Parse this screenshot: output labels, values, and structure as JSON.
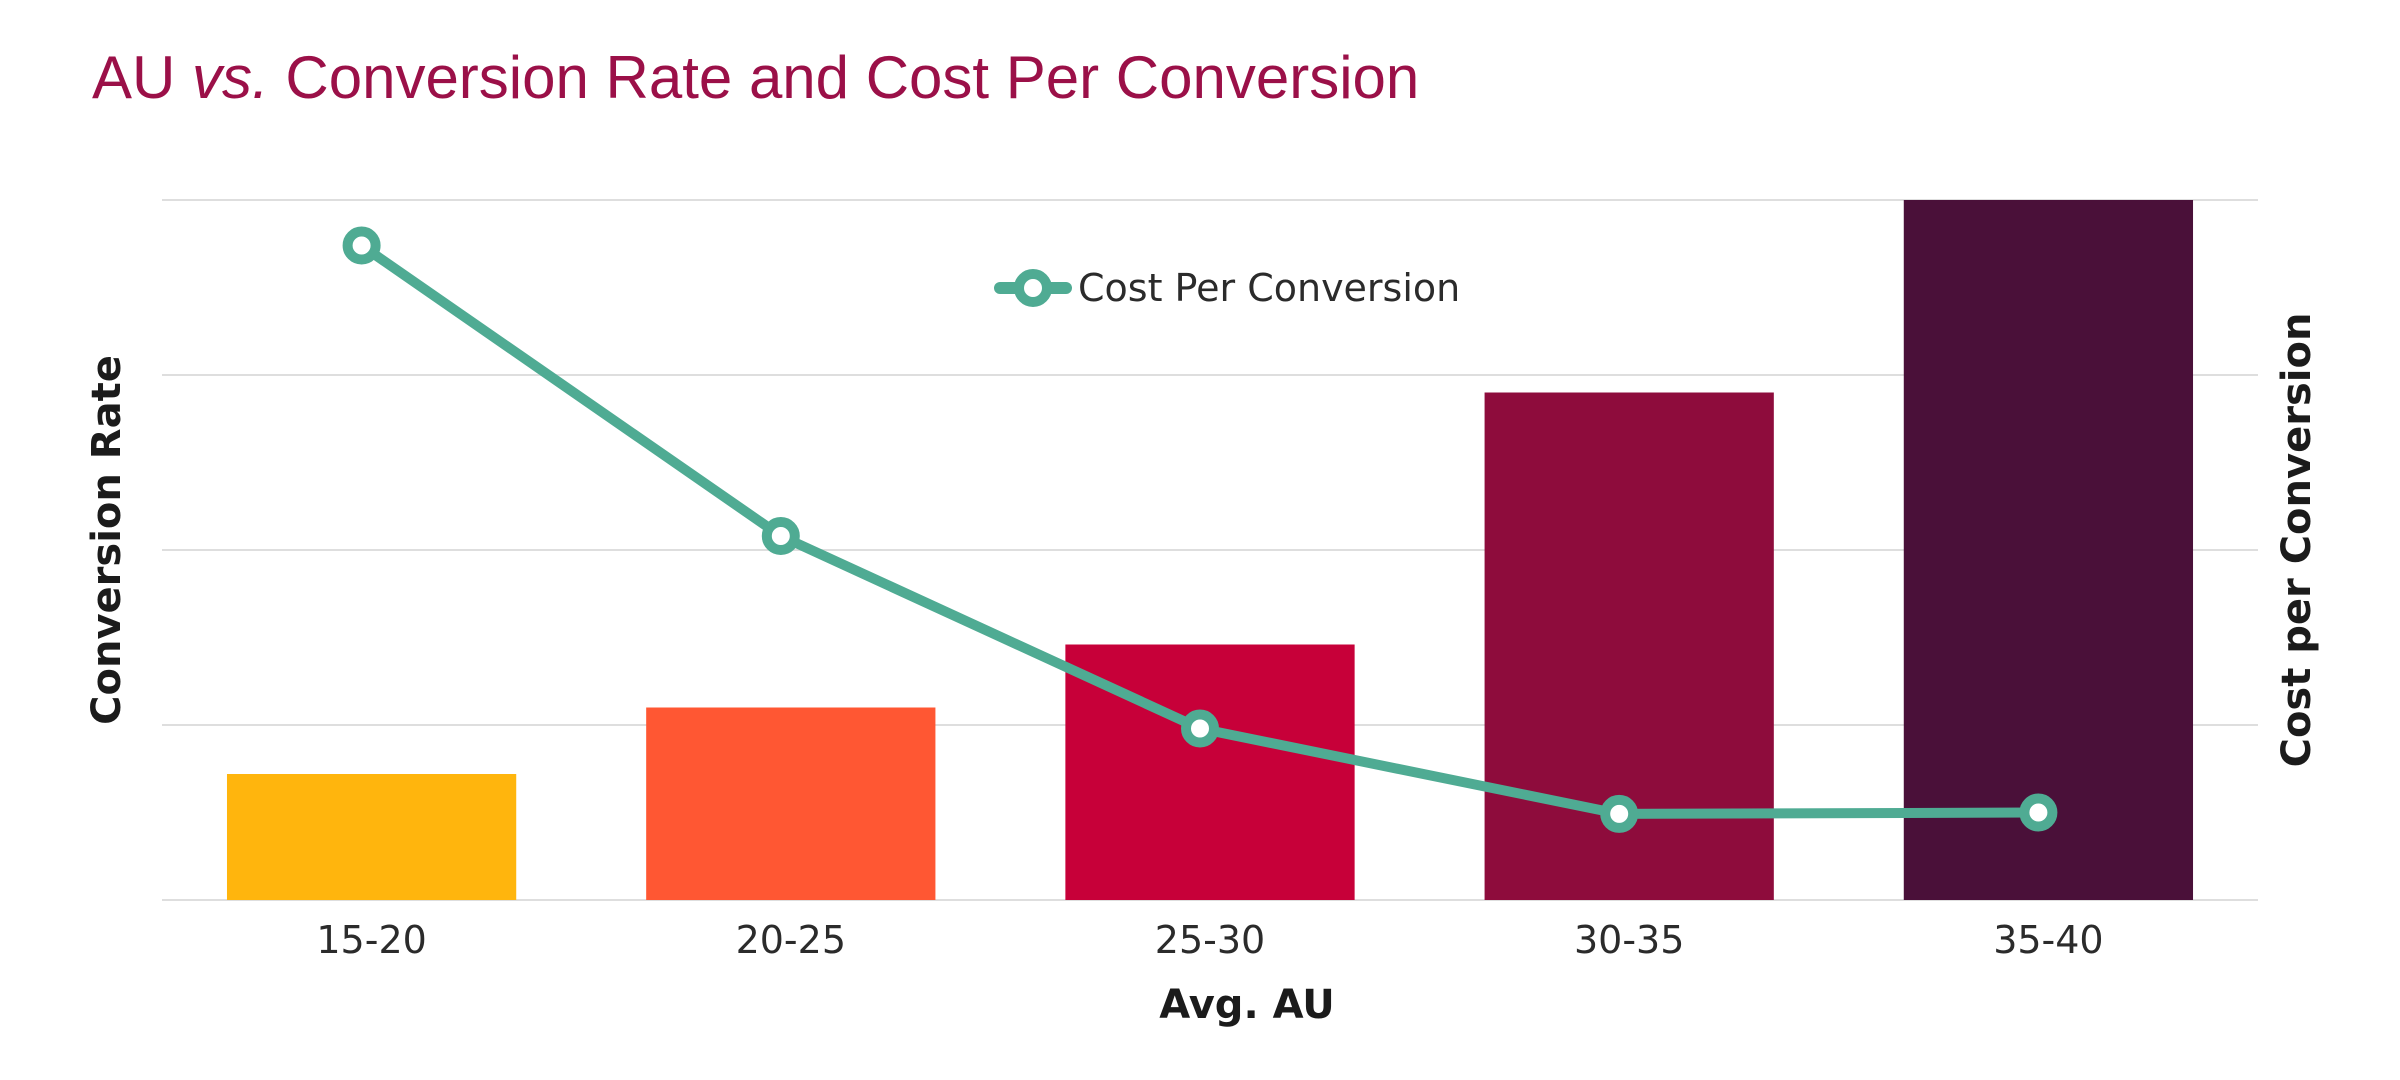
{
  "chart_data": {
    "type": "bar",
    "title": {
      "prefix": "AU ",
      "emphasis": "vs.",
      "suffix": " Conversion Rate and Cost Per Conversion"
    },
    "xlabel": "Avg. AU",
    "ylabel": "Conversion Rate",
    "y2label": "Cost per Conversion",
    "categories": [
      "15-20",
      "20-25",
      "25-30",
      "30-35",
      "35-40"
    ],
    "ylim": [
      0,
      100
    ],
    "y2lim": [
      0,
      100
    ],
    "grid": true,
    "series": [
      {
        "type": "bar",
        "values": [
          18,
          27.5,
          36.5,
          72.5,
          100
        ],
        "colors": [
          "#ffb50d",
          "#ff5733",
          "#c70039",
          "#8e0c3c",
          "#4a1039"
        ]
      },
      {
        "type": "line",
        "name": "Cost Per Conversion",
        "axis": "y2",
        "color": "#4fab93",
        "values": [
          93.5,
          52,
          24.5,
          12.3,
          12.5
        ]
      }
    ],
    "legend": {
      "position": "top-center"
    }
  }
}
